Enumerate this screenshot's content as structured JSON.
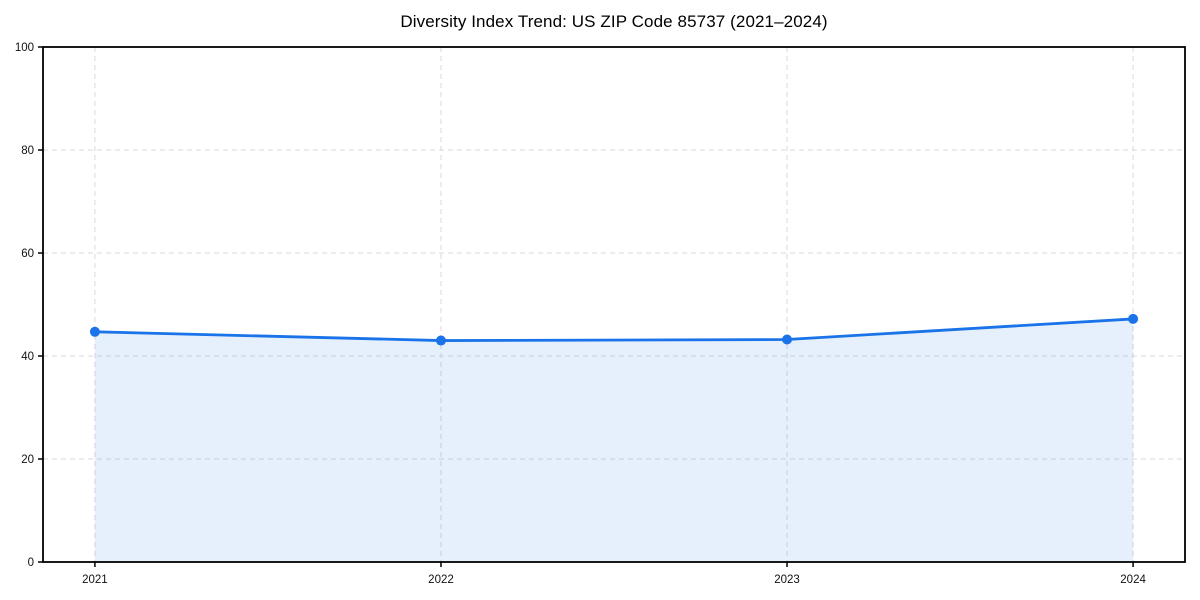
{
  "chart": {
    "title": "Diversity Index Trend: US ZIP Code 85737 (2021–2024)"
  },
  "chart_data": {
    "type": "line",
    "title": "Diversity Index Trend: US ZIP Code 85737 (2021–2024)",
    "categories": [
      "2021",
      "2022",
      "2023",
      "2024"
    ],
    "series": [
      {
        "name": "Diversity Index",
        "values": [
          44.7,
          43.0,
          43.2,
          47.2
        ]
      }
    ],
    "xlabel": "",
    "ylabel": "",
    "ylim": [
      0,
      100
    ],
    "yticks": [
      0,
      20,
      40,
      60,
      80,
      100
    ],
    "grid": true,
    "grid_style": "dashed",
    "legend_position": "none",
    "area_fill": true,
    "marker": "circle",
    "colors": {
      "line": "#1a73e8",
      "marker": "#1a73e8",
      "fill": "rgba(26,115,232,0.11)",
      "grid": "#d9d9d9",
      "spine": "#000000",
      "text": "#111111",
      "background": "#ffffff"
    }
  }
}
